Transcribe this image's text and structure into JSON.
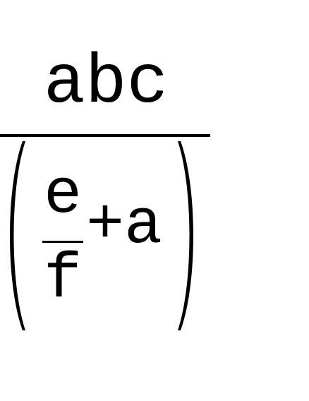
{
  "expression": {
    "numerator": "abc",
    "inner_numerator": "e",
    "inner_denominator": "f",
    "inner_addend": "+a"
  }
}
